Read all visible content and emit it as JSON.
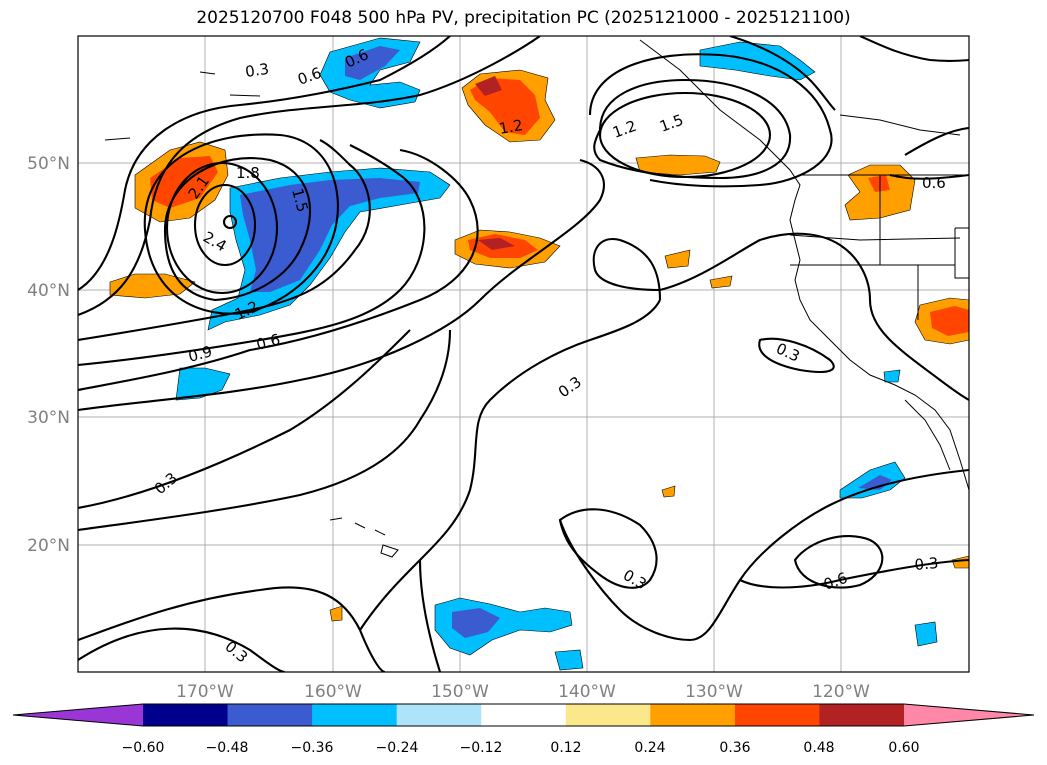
{
  "title": "2025120700 F048 500 hPa PV, precipitation PC (2025121000 - 2025121100)",
  "axes": {
    "x_labels": [
      "170°W",
      "160°W",
      "150°W",
      "140°W",
      "130°W",
      "120°W"
    ],
    "y_labels": [
      "50°N",
      "40°N",
      "30°N",
      "20°N"
    ]
  },
  "contour_labels": [
    "0.3",
    "0.6",
    "0.6",
    "1.8",
    "2.1",
    "2.4",
    "1.5",
    "1.2",
    "0.9",
    "0.6",
    "1.2",
    "1.2",
    "1.5",
    "0.6",
    "0.3",
    "0.3",
    "0.3",
    "0.3",
    "0.3",
    "0.6",
    "0.3"
  ],
  "colorbar": {
    "tick_labels": [
      "−0.60",
      "−0.48",
      "−0.36",
      "−0.24",
      "−0.12",
      "0.12",
      "0.24",
      "0.36",
      "0.48",
      "0.60"
    ],
    "colors": [
      "#9a35d6",
      "#00008c",
      "#3b5bd1",
      "#00bfff",
      "#ade4fa",
      "#ffffff",
      "#fbe88a",
      "#ffa000",
      "#ff4500",
      "#b22222",
      "#ff88a8"
    ]
  }
}
